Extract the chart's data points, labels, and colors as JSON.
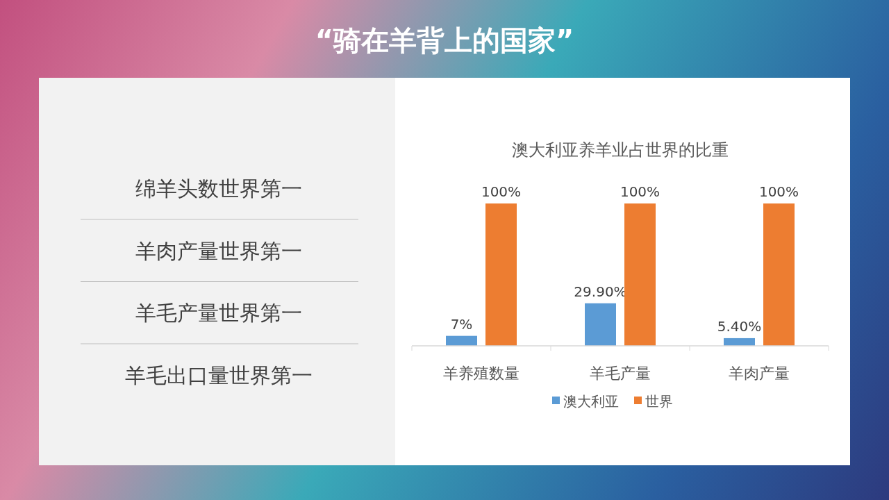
{
  "chart_data": [
    {
      "type": "other",
      "title": "“骑在羊背上的国家”",
      "annotations": [
        "绵羊头数世界第一",
        "羊肉产量世界第一",
        "羊毛产量世界第一",
        "羊毛出口量世界第一"
      ]
    },
    {
      "type": "bar",
      "title": "澳大利亚养羊业占世界的比重",
      "categories": [
        "羊养殖数量",
        "羊毛产量",
        "羊肉产量"
      ],
      "legend": "bottom",
      "series": [
        {
          "name": "澳大利亚",
          "color": "#5b9bd5",
          "values": [
            7,
            29.9,
            5.4
          ],
          "value_labels": [
            "7%",
            "29.90%",
            "5.40%"
          ]
        },
        {
          "name": "世界",
          "color": "#ed7d31",
          "values": [
            100,
            100,
            100
          ],
          "value_labels": [
            "100%",
            "100%",
            "100%"
          ]
        }
      ]
    }
  ]
}
